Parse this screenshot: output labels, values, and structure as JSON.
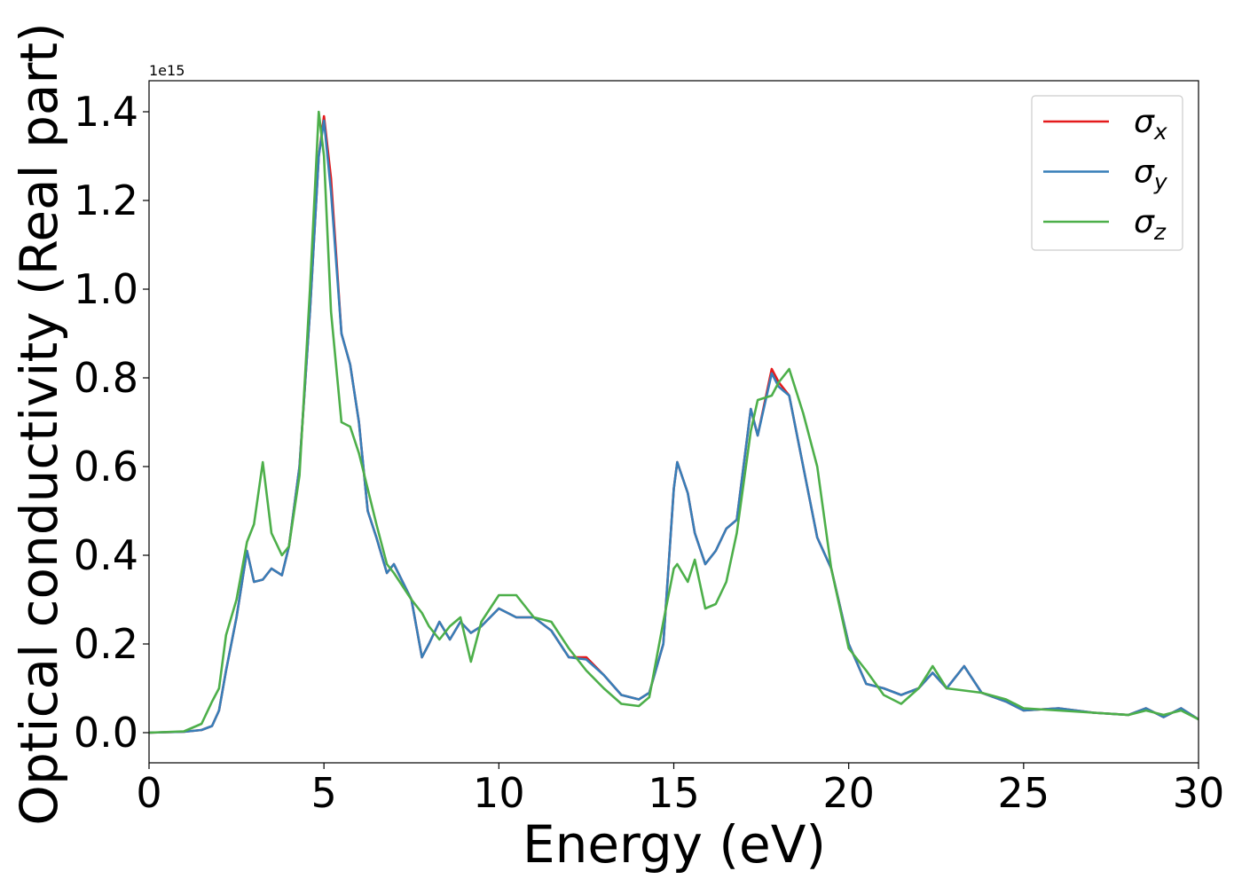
{
  "chart_data": {
    "type": "line",
    "xlabel": "Energy (eV)",
    "ylabel": "Optical conductivity (Real part)",
    "y_offset_label": "1e15",
    "x": [
      0,
      1,
      1.5,
      1.8,
      2,
      2.2,
      2.5,
      2.8,
      3,
      3.25,
      3.5,
      3.8,
      4,
      4.3,
      4.6,
      4.85,
      5,
      5.2,
      5.5,
      5.75,
      6,
      6.25,
      6.5,
      6.8,
      7,
      7.5,
      7.8,
      8,
      8.3,
      8.6,
      8.9,
      9.2,
      9.5,
      10,
      10.5,
      11,
      11.5,
      12,
      12.5,
      13,
      13.5,
      14,
      14.3,
      14.7,
      15,
      15.1,
      15.4,
      15.6,
      15.9,
      16.2,
      16.5,
      16.8,
      17.2,
      17.4,
      17.8,
      18,
      18.3,
      18.7,
      19.1,
      19.5,
      20,
      20.5,
      21,
      21.5,
      22,
      22.4,
      22.8,
      23.3,
      23.8,
      24.5,
      25,
      26,
      27,
      28,
      28.5,
      29,
      29.5,
      30
    ],
    "series": [
      {
        "name": "σx",
        "color": "#e41a1c",
        "values": [
          0,
          0.002,
          0.006,
          0.015,
          0.05,
          0.14,
          0.26,
          0.41,
          0.34,
          0.345,
          0.37,
          0.355,
          0.42,
          0.6,
          0.95,
          1.3,
          1.39,
          1.25,
          0.9,
          0.83,
          0.7,
          0.5,
          0.44,
          0.36,
          0.38,
          0.3,
          0.17,
          0.2,
          0.25,
          0.21,
          0.25,
          0.225,
          0.24,
          0.28,
          0.26,
          0.26,
          0.23,
          0.17,
          0.17,
          0.13,
          0.085,
          0.075,
          0.09,
          0.2,
          0.55,
          0.61,
          0.54,
          0.45,
          0.38,
          0.41,
          0.46,
          0.48,
          0.73,
          0.67,
          0.82,
          0.79,
          0.76,
          0.6,
          0.44,
          0.37,
          0.2,
          0.11,
          0.1,
          0.085,
          0.1,
          0.135,
          0.1,
          0.15,
          0.09,
          0.07,
          0.05,
          0.055,
          0.045,
          0.04,
          0.055,
          0.035,
          0.055,
          0.03
        ]
      },
      {
        "name": "σy",
        "color": "#377eb8",
        "values": [
          0,
          0.002,
          0.006,
          0.015,
          0.05,
          0.14,
          0.26,
          0.41,
          0.34,
          0.345,
          0.37,
          0.355,
          0.42,
          0.6,
          0.95,
          1.3,
          1.38,
          1.22,
          0.9,
          0.83,
          0.7,
          0.5,
          0.44,
          0.36,
          0.38,
          0.3,
          0.17,
          0.2,
          0.25,
          0.21,
          0.25,
          0.225,
          0.24,
          0.28,
          0.26,
          0.26,
          0.23,
          0.17,
          0.165,
          0.13,
          0.085,
          0.075,
          0.09,
          0.2,
          0.55,
          0.61,
          0.54,
          0.45,
          0.38,
          0.41,
          0.46,
          0.48,
          0.73,
          0.67,
          0.81,
          0.78,
          0.76,
          0.6,
          0.44,
          0.37,
          0.2,
          0.11,
          0.1,
          0.085,
          0.1,
          0.135,
          0.1,
          0.15,
          0.09,
          0.07,
          0.05,
          0.055,
          0.045,
          0.04,
          0.055,
          0.035,
          0.055,
          0.03
        ]
      },
      {
        "name": "σz",
        "color": "#4daf4a",
        "values": [
          0,
          0.003,
          0.02,
          0.07,
          0.1,
          0.22,
          0.3,
          0.43,
          0.47,
          0.61,
          0.45,
          0.4,
          0.42,
          0.58,
          1.0,
          1.4,
          1.3,
          0.95,
          0.7,
          0.69,
          0.63,
          0.55,
          0.47,
          0.38,
          0.36,
          0.3,
          0.27,
          0.24,
          0.21,
          0.24,
          0.26,
          0.16,
          0.25,
          0.31,
          0.31,
          0.26,
          0.25,
          0.19,
          0.14,
          0.1,
          0.065,
          0.06,
          0.08,
          0.25,
          0.37,
          0.38,
          0.34,
          0.39,
          0.28,
          0.29,
          0.34,
          0.45,
          0.68,
          0.75,
          0.76,
          0.79,
          0.82,
          0.72,
          0.6,
          0.37,
          0.19,
          0.14,
          0.085,
          0.065,
          0.1,
          0.15,
          0.1,
          0.095,
          0.09,
          0.075,
          0.055,
          0.05,
          0.045,
          0.04,
          0.05,
          0.04,
          0.05,
          0.03
        ]
      }
    ],
    "xlim": [
      0,
      30
    ],
    "xticks": [
      0,
      5,
      10,
      15,
      20,
      25,
      30
    ],
    "ylim": [
      -0.068,
      1.47
    ],
    "yticks": [
      {
        "value": 0,
        "label": "0.0"
      },
      0.2,
      0.4,
      0.6,
      0.8,
      {
        "value": 1,
        "label": "1.0"
      },
      1.2,
      1.4
    ],
    "grid": false,
    "legend": "upper right"
  }
}
